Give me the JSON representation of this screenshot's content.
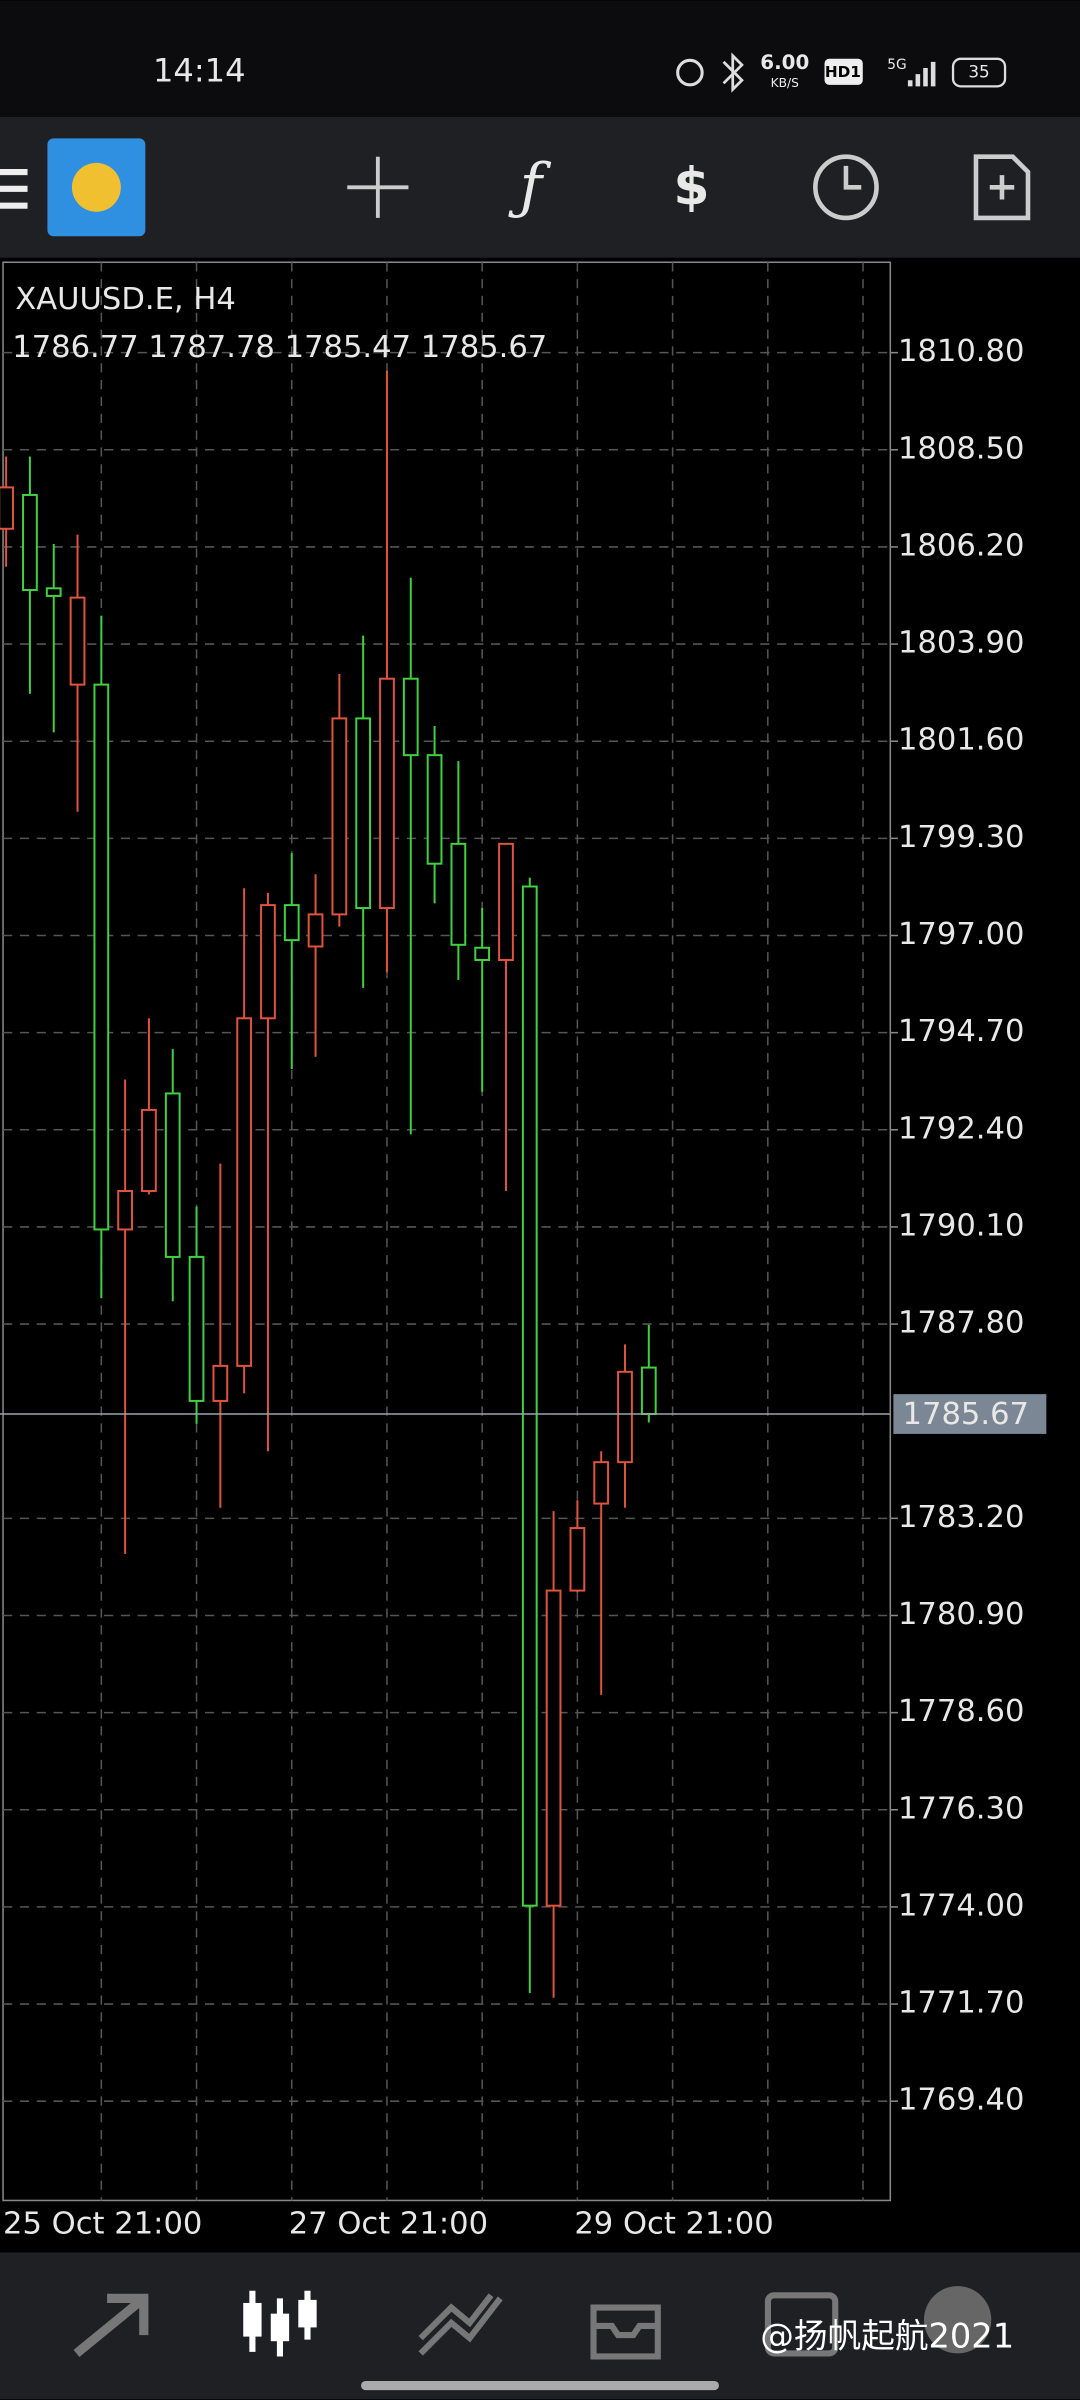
{
  "status_bar": {
    "time": "14:14",
    "speed": "6.00",
    "speed_unit": "KB/S",
    "hd": "HD1",
    "network": "5G",
    "battery": "35"
  },
  "watermark": "@扬帆起航2021",
  "chart_data": {
    "type": "candlestick",
    "title": "XAUUSD.E, H4",
    "categories": [
      "25 Oct 21:00",
      null,
      null,
      null,
      null,
      null,
      null,
      null,
      null,
      null,
      null,
      null,
      "27 Oct 21:00",
      null,
      null,
      null,
      null,
      null,
      null,
      null,
      null,
      null,
      null,
      null,
      "29 Oct 21:00",
      null,
      null,
      null
    ],
    "open": [
      1806.63,
      1807.43,
      1805.22,
      1802.94,
      1802.94,
      1790.04,
      1790.95,
      1793.26,
      1789.39,
      1785.98,
      1786.81,
      1795.04,
      1797.72,
      1796.74,
      1797.5,
      1802.14,
      1797.65,
      1803.08,
      1801.27,
      1799.17,
      1796.71,
      1796.42,
      1798.16,
      1774.03,
      1781.49,
      1783.55,
      1784.53,
      1786.77
    ],
    "high": [
      1808.34,
      1808.34,
      1806.27,
      1806.49,
      1804.57,
      1793.59,
      1795.04,
      1794.31,
      1790.58,
      1791.6,
      1798.12,
      1798.01,
      1798.95,
      1798.45,
      1803.19,
      1804.1,
      1810.37,
      1805.47,
      1801.96,
      1801.13,
      1797.65,
      1799.17,
      1798.37,
      1783.37,
      1783.63,
      1784.79,
      1787.32,
      1787.78
    ],
    "low": [
      1805.73,
      1802.72,
      1801.81,
      1799.93,
      1788.41,
      1782.36,
      1790.87,
      1788.34,
      1785.44,
      1783.45,
      1786.16,
      1784.79,
      1793.84,
      1794.13,
      1797.21,
      1795.76,
      1796.13,
      1792.29,
      1797.76,
      1795.95,
      1793.3,
      1790.95,
      1771.96,
      1771.85,
      1781.45,
      1779.02,
      1783.45,
      1785.47
    ],
    "close": [
      1807.61,
      1805.18,
      1805.04,
      1805.0,
      1790.04,
      1790.95,
      1792.87,
      1789.39,
      1785.98,
      1786.81,
      1795.04,
      1797.72,
      1796.89,
      1797.5,
      1802.14,
      1797.65,
      1803.08,
      1801.27,
      1798.7,
      1796.78,
      1796.42,
      1799.17,
      1774.03,
      1781.49,
      1782.97,
      1784.53,
      1786.67,
      1785.67
    ],
    "up_color": "#e0533d",
    "down_color": "#3fd13f",
    "ylim": [
      1767.05,
      1812.94
    ],
    "yticks": [
      {
        "value": 1810.8,
        "label": "1810.80"
      },
      {
        "value": 1808.5,
        "label": "1808.50"
      },
      {
        "value": 1806.2,
        "label": "1806.20"
      },
      {
        "value": 1803.9,
        "label": "1803.90"
      },
      {
        "value": 1801.6,
        "label": "1801.60"
      },
      {
        "value": 1799.3,
        "label": "1799.30"
      },
      {
        "value": 1797.0,
        "label": "1797.00"
      },
      {
        "value": 1794.7,
        "label": "1794.70"
      },
      {
        "value": 1792.4,
        "label": "1792.40"
      },
      {
        "value": 1790.1,
        "label": "1790.10"
      },
      {
        "value": 1787.8,
        "label": "1787.80"
      },
      {
        "value": 1783.2,
        "label": "1783.20"
      },
      {
        "value": 1780.9,
        "label": "1780.90"
      },
      {
        "value": 1778.6,
        "label": "1778.60"
      },
      {
        "value": 1776.3,
        "label": "1776.30"
      },
      {
        "value": 1774.0,
        "label": "1774.00"
      },
      {
        "value": 1771.7,
        "label": "1771.70"
      },
      {
        "value": 1769.4,
        "label": "1769.40"
      }
    ],
    "grid": true
  }
}
